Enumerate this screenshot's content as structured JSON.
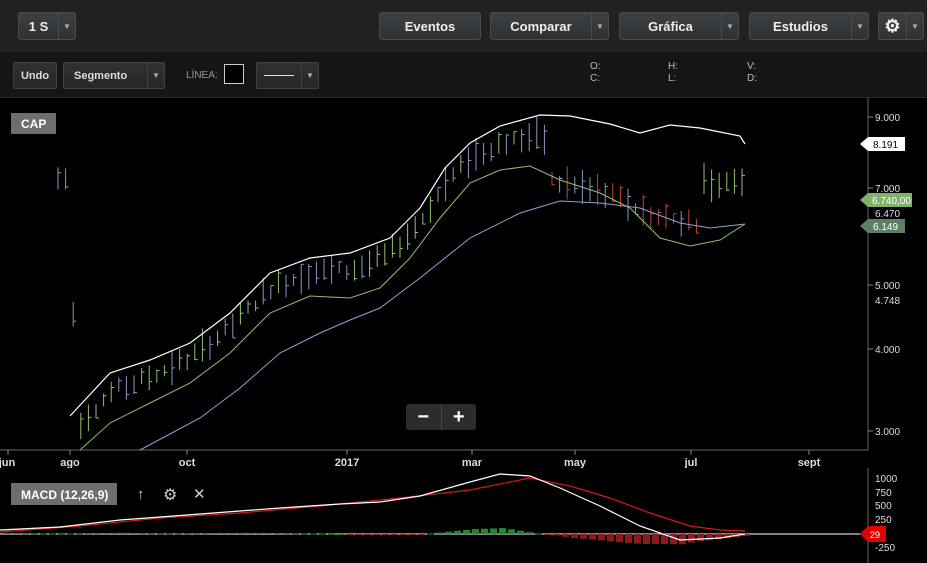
{
  "topbar": {
    "period": "1 S",
    "eventos": "Eventos",
    "comparar": "Comparar",
    "grafica": "Gráfica",
    "estudios": "Estudios"
  },
  "toolbar": {
    "undo": "Undo",
    "segmento": "Segmento",
    "linea_label": "LÍNEA:",
    "ohlc": {
      "o": "O:",
      "h": "H:",
      "v": "V:",
      "c": "C:",
      "l": "L:",
      "d": "D:"
    }
  },
  "chart": {
    "symbol": "CAP",
    "y_ticks": [
      "9.000",
      "7.000",
      "6.470",
      "5.000",
      "4.748",
      "4.000",
      "3.000"
    ],
    "x_ticks": [
      "jun",
      "ago",
      "oct",
      "2017",
      "mar",
      "may",
      "jul",
      "sept"
    ],
    "price_tags": [
      {
        "label": "8.191",
        "color": "#ffffff"
      },
      {
        "label": "6.740,00",
        "color": "#7fb26a"
      },
      {
        "label": "6.149",
        "color": "#5d7f66"
      }
    ],
    "colors": {
      "up": "#8fbf6f",
      "neutral": "#8a96c8",
      "down": "#c0463f",
      "ma_white": "#ffffff",
      "ma_green": "#8fbf6f",
      "ma_blue": "#8ca2d8"
    }
  },
  "macd": {
    "label": "MACD (12,26,9)",
    "y_ticks": [
      "1000",
      "750",
      "500",
      "250",
      "0",
      "-250"
    ],
    "value_tag": "29",
    "colors": {
      "macd": "#ffffff",
      "signal": "#d11a1a",
      "hist_up": "#1f8a2a",
      "hist_down": "#8b1a1a"
    }
  },
  "zoom": {
    "minus": "−",
    "plus": "+"
  }
}
